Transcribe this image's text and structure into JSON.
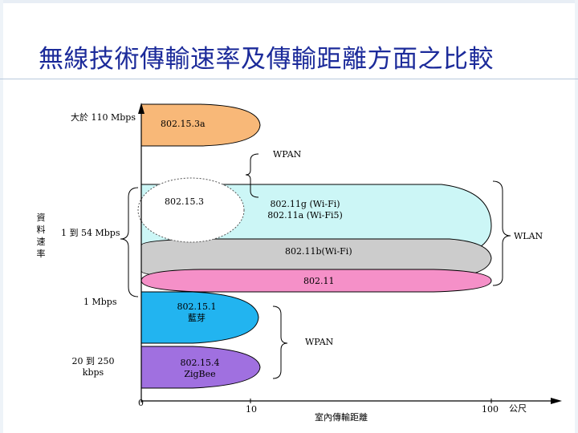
{
  "title": "無線技術傳輸速率及傳輸距離方面之比較",
  "y_axis_label": "資料速率",
  "x_axis_label": "室內傳輸距離",
  "rate_labels": {
    "high": "大於 110 Mbps",
    "mid": "1 到 54 Mbps",
    "low1": "1 Mbps",
    "low2_line1": "20 到 250",
    "low2_line2": "kbps"
  },
  "x_ticks": {
    "t0": "0",
    "t10": "10",
    "t100": "100",
    "unit": "公尺"
  },
  "groups": {
    "wpan_top": "WPAN",
    "wlan": "WLAN",
    "wpan_bottom": "WPAN"
  },
  "technologies": {
    "t_802153a": "802.15.3a",
    "t_802153": "802.15.3",
    "t_80211g_line1": "802.11g (Wi-Fi)",
    "t_80211g_line2": "802.11a (Wi-Fi5)",
    "t_80211b": "802.11b(Wi-Fi)",
    "t_80211": "802.11",
    "t_802151_line1": "802.15.1",
    "t_802151_line2": "藍芽",
    "t_802154_line1": "802.15.4",
    "t_802154_line2": "ZigBee"
  },
  "colors": {
    "title": "#1c2b9a",
    "e802153a": "#f8b878",
    "e80211g": "#ccf6f6",
    "e80211b": "#cccccc",
    "e80211": "#f590c8",
    "e802151": "#22b4f0",
    "e802154": "#a070e0"
  }
}
